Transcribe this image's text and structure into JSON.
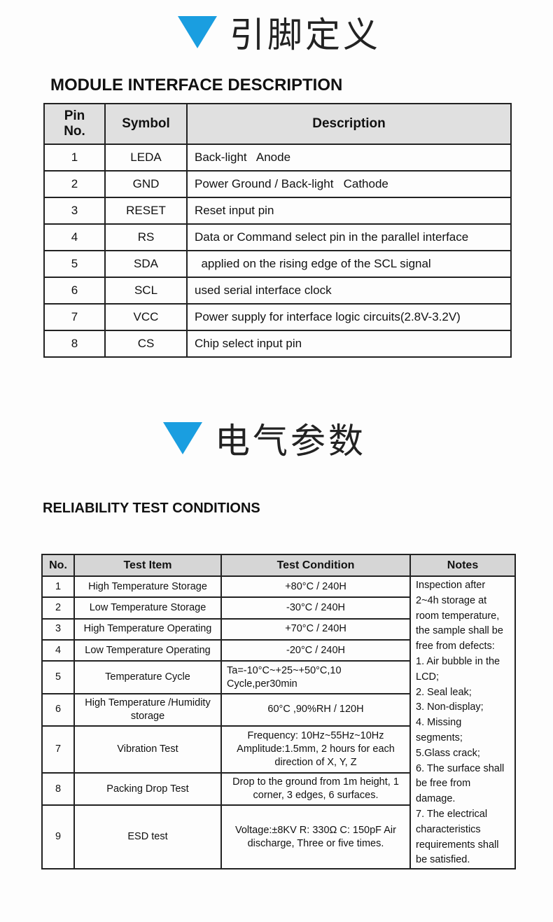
{
  "accent_color": "#1a9ee0",
  "section1": {
    "heading_icon": "triangle-down-icon",
    "heading": "引脚定义",
    "title": "MODULE INTERFACE DESCRIPTION",
    "columns": [
      "Pin No.",
      "Symbol",
      "Description"
    ],
    "rows": [
      {
        "pin": "1",
        "symbol": "LEDA",
        "description": "Back-light   Anode"
      },
      {
        "pin": "2",
        "symbol": "GND",
        "description": "Power Ground / Back-light   Cathode"
      },
      {
        "pin": "3",
        "symbol": "RESET",
        "description": "Reset input pin"
      },
      {
        "pin": "4",
        "symbol": "RS",
        "description": "Data or Command select pin in the parallel interface"
      },
      {
        "pin": "5",
        "symbol": "SDA",
        "description": "  applied on the rising edge of the SCL signal"
      },
      {
        "pin": "6",
        "symbol": "SCL",
        "description": "used serial interface clock"
      },
      {
        "pin": "7",
        "symbol": "VCC",
        "description": "Power supply for interface logic circuits(2.8V-3.2V)"
      },
      {
        "pin": "8",
        "symbol": "CS",
        "description": "Chip select input pin"
      }
    ]
  },
  "section2": {
    "heading_icon": "triangle-down-icon",
    "heading": "电气参数",
    "title": "RELIABILITY TEST CONDITIONS",
    "columns": [
      "No.",
      "Test Item",
      "Test Condition",
      "Notes"
    ],
    "rows": [
      {
        "no": "1",
        "item": "High Temperature Storage",
        "condition": "+80°C / 240H"
      },
      {
        "no": "2",
        "item": "Low Temperature Storage",
        "condition": "-30°C / 240H"
      },
      {
        "no": "3",
        "item": "High Temperature Operating",
        "condition": "+70°C / 240H"
      },
      {
        "no": "4",
        "item": "Low Temperature Operating",
        "condition": "-20°C / 240H"
      },
      {
        "no": "5",
        "item": "Temperature Cycle",
        "condition": "Ta=-10°C~+25~+50°C,10 Cycle,per30min"
      },
      {
        "no": "6",
        "item": "High Temperature /Humidity storage",
        "condition": "60°C ,90%RH / 120H"
      },
      {
        "no": "7",
        "item": "Vibration Test",
        "condition": "Frequency:  10Hz~55Hz~10Hz Amplitude:1.5mm, 2 hours for each direction of X, Y, Z"
      },
      {
        "no": "8",
        "item": "Packing Drop Test",
        "condition": "Drop to the ground from  1m height, 1 corner, 3 edges, 6 surfaces."
      },
      {
        "no": "9",
        "item": "ESD test",
        "condition": "Voltage:±8KV   R: 330Ω   C:  150pF Air discharge, Three or five times."
      }
    ],
    "notes": [
      "Inspection after",
      "2~4h storage at",
      "room temperature,",
      "the sample shall be",
      "free from defects:",
      "1. Air bubble in the",
      "LCD;",
      "2. Seal leak;",
      "3.  Non-display;",
      "4.  Missing",
      "segments;",
      "5.Glass crack;",
      "6. The surface shall",
      "be free from",
      "damage.",
      "7. The electrical",
      "characteristics",
      "requirements shall",
      "be satisfied."
    ]
  }
}
